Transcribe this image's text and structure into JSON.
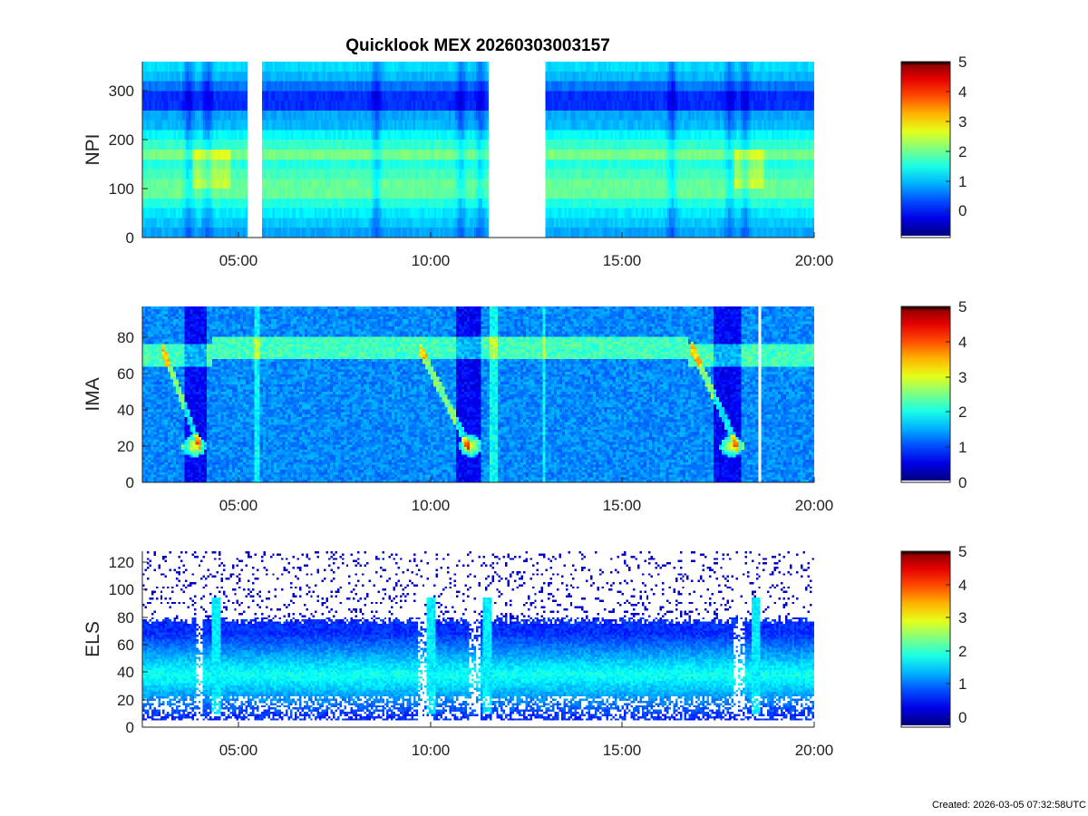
{
  "title": "Quicklook MEX 20260303003157",
  "created": "Created: 2026-03-05 07:32:58UTC",
  "chart_data": [
    {
      "type": "heatmap",
      "id": "npi",
      "ylabel": "NPI",
      "xlim": [
        2.5,
        20.0
      ],
      "ylim": [
        0,
        360
      ],
      "yticks": [
        0,
        100,
        200,
        300
      ],
      "xticks": [
        "05:00",
        "10:00",
        "15:00",
        "20:00"
      ],
      "xtick_values": [
        5,
        10,
        15,
        20
      ],
      "data_gaps": [
        [
          5.25,
          5.6
        ],
        [
          11.5,
          13.0
        ]
      ],
      "colorbar": {
        "min": -0.9,
        "max": 5,
        "ticks": [
          0,
          1,
          2,
          3,
          4,
          5
        ]
      }
    },
    {
      "type": "heatmap",
      "id": "ima",
      "ylabel": "IMA",
      "xlim": [
        2.5,
        20.0
      ],
      "ylim": [
        0,
        97
      ],
      "yticks": [
        0,
        20,
        40,
        60,
        80
      ],
      "xticks": [
        "05:00",
        "10:00",
        "15:00",
        "20:00"
      ],
      "xtick_values": [
        5,
        10,
        15,
        20
      ],
      "data_gaps": [
        [
          18.55,
          18.65
        ]
      ],
      "colorbar": {
        "min": 0,
        "max": 5,
        "ticks": [
          0,
          1,
          2,
          3,
          4,
          5
        ]
      }
    },
    {
      "type": "heatmap",
      "id": "els",
      "ylabel": "ELS",
      "xlim": [
        2.5,
        20.0
      ],
      "ylim": [
        0,
        128
      ],
      "yticks": [
        0,
        20,
        40,
        60,
        80,
        100,
        120
      ],
      "xticks": [
        "05:00",
        "10:00",
        "15:00",
        "20:00"
      ],
      "xtick_values": [
        5,
        10,
        15,
        20
      ],
      "data_gaps": [],
      "colorbar": {
        "min": -0.3,
        "max": 5,
        "ticks": [
          0,
          1,
          2,
          3,
          4,
          5
        ]
      }
    }
  ]
}
